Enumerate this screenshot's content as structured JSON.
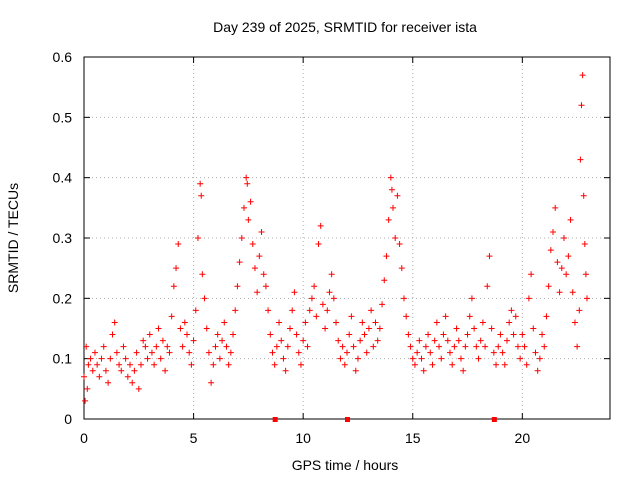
{
  "chart_data": {
    "type": "scatter",
    "title": "Day 239 of 2025, SRMTID for receiver ista",
    "xlabel": "GPS time / hours",
    "ylabel": "SRMTID / TECUs",
    "xlim": [
      0,
      24
    ],
    "ylim": [
      0,
      0.6
    ],
    "xticks": [
      0,
      5,
      10,
      15,
      20
    ],
    "yticks": [
      0,
      0.1,
      0.2,
      0.3,
      0.4,
      0.5,
      0.6
    ],
    "grid": true,
    "marker": "+",
    "color": "#ff0000",
    "baseline_markers_x": [
      8.7,
      12.0,
      18.7
    ],
    "series": [
      {
        "name": "SRMTID",
        "points": [
          [
            0.0,
            0.07
          ],
          [
            0.05,
            0.03
          ],
          [
            0.1,
            0.12
          ],
          [
            0.15,
            0.05
          ],
          [
            0.2,
            0.09
          ],
          [
            0.3,
            0.1
          ],
          [
            0.4,
            0.08
          ],
          [
            0.5,
            0.11
          ],
          [
            0.6,
            0.09
          ],
          [
            0.7,
            0.07
          ],
          [
            0.8,
            0.1
          ],
          [
            0.9,
            0.12
          ],
          [
            1.0,
            0.08
          ],
          [
            1.1,
            0.06
          ],
          [
            1.2,
            0.1
          ],
          [
            1.3,
            0.14
          ],
          [
            1.4,
            0.16
          ],
          [
            1.5,
            0.11
          ],
          [
            1.6,
            0.09
          ],
          [
            1.7,
            0.08
          ],
          [
            1.8,
            0.12
          ],
          [
            1.9,
            0.1
          ],
          [
            2.0,
            0.07
          ],
          [
            2.1,
            0.09
          ],
          [
            2.2,
            0.06
          ],
          [
            2.3,
            0.08
          ],
          [
            2.4,
            0.11
          ],
          [
            2.5,
            0.05
          ],
          [
            2.6,
            0.09
          ],
          [
            2.7,
            0.13
          ],
          [
            2.8,
            0.12
          ],
          [
            2.9,
            0.1
          ],
          [
            3.0,
            0.14
          ],
          [
            3.1,
            0.11
          ],
          [
            3.2,
            0.09
          ],
          [
            3.3,
            0.12
          ],
          [
            3.4,
            0.15
          ],
          [
            3.5,
            0.1
          ],
          [
            3.6,
            0.13
          ],
          [
            3.7,
            0.08
          ],
          [
            3.8,
            0.12
          ],
          [
            3.9,
            0.11
          ],
          [
            4.0,
            0.17
          ],
          [
            4.1,
            0.22
          ],
          [
            4.2,
            0.25
          ],
          [
            4.3,
            0.29
          ],
          [
            4.4,
            0.15
          ],
          [
            4.5,
            0.12
          ],
          [
            4.6,
            0.16
          ],
          [
            4.7,
            0.14
          ],
          [
            4.8,
            0.11
          ],
          [
            4.9,
            0.09
          ],
          [
            5.0,
            0.13
          ],
          [
            5.1,
            0.18
          ],
          [
            5.2,
            0.3
          ],
          [
            5.3,
            0.39
          ],
          [
            5.35,
            0.37
          ],
          [
            5.4,
            0.24
          ],
          [
            5.5,
            0.2
          ],
          [
            5.6,
            0.15
          ],
          [
            5.7,
            0.11
          ],
          [
            5.8,
            0.06
          ],
          [
            5.9,
            0.09
          ],
          [
            6.0,
            0.12
          ],
          [
            6.1,
            0.14
          ],
          [
            6.2,
            0.1
          ],
          [
            6.3,
            0.13
          ],
          [
            6.4,
            0.16
          ],
          [
            6.5,
            0.12
          ],
          [
            6.6,
            0.09
          ],
          [
            6.7,
            0.11
          ],
          [
            6.8,
            0.14
          ],
          [
            6.9,
            0.18
          ],
          [
            7.0,
            0.22
          ],
          [
            7.1,
            0.26
          ],
          [
            7.2,
            0.3
          ],
          [
            7.3,
            0.35
          ],
          [
            7.4,
            0.4
          ],
          [
            7.45,
            0.39
          ],
          [
            7.5,
            0.33
          ],
          [
            7.6,
            0.36
          ],
          [
            7.7,
            0.29
          ],
          [
            7.8,
            0.25
          ],
          [
            7.9,
            0.21
          ],
          [
            8.0,
            0.27
          ],
          [
            8.1,
            0.31
          ],
          [
            8.2,
            0.24
          ],
          [
            8.3,
            0.22
          ],
          [
            8.4,
            0.18
          ],
          [
            8.5,
            0.14
          ],
          [
            8.6,
            0.11
          ],
          [
            8.7,
            0.09
          ],
          [
            8.8,
            0.12
          ],
          [
            8.9,
            0.16
          ],
          [
            9.0,
            0.13
          ],
          [
            9.1,
            0.1
          ],
          [
            9.2,
            0.08
          ],
          [
            9.3,
            0.12
          ],
          [
            9.4,
            0.15
          ],
          [
            9.5,
            0.18
          ],
          [
            9.6,
            0.21
          ],
          [
            9.7,
            0.14
          ],
          [
            9.8,
            0.11
          ],
          [
            9.9,
            0.09
          ],
          [
            10.0,
            0.13
          ],
          [
            10.1,
            0.16
          ],
          [
            10.2,
            0.12
          ],
          [
            10.3,
            0.18
          ],
          [
            10.4,
            0.2
          ],
          [
            10.5,
            0.22
          ],
          [
            10.6,
            0.17
          ],
          [
            10.7,
            0.29
          ],
          [
            10.8,
            0.32
          ],
          [
            10.9,
            0.19
          ],
          [
            11.0,
            0.15
          ],
          [
            11.1,
            0.18
          ],
          [
            11.2,
            0.21
          ],
          [
            11.3,
            0.24
          ],
          [
            11.4,
            0.2
          ],
          [
            11.5,
            0.16
          ],
          [
            11.6,
            0.13
          ],
          [
            11.7,
            0.1
          ],
          [
            11.8,
            0.12
          ],
          [
            11.9,
            0.09
          ],
          [
            12.0,
            0.11
          ],
          [
            12.1,
            0.14
          ],
          [
            12.2,
            0.17
          ],
          [
            12.3,
            0.12
          ],
          [
            12.4,
            0.08
          ],
          [
            12.5,
            0.1
          ],
          [
            12.6,
            0.13
          ],
          [
            12.7,
            0.16
          ],
          [
            12.8,
            0.14
          ],
          [
            12.9,
            0.11
          ],
          [
            13.0,
            0.15
          ],
          [
            13.1,
            0.18
          ],
          [
            13.2,
            0.12
          ],
          [
            13.3,
            0.16
          ],
          [
            13.4,
            0.13
          ],
          [
            13.5,
            0.15
          ],
          [
            13.6,
            0.19
          ],
          [
            13.7,
            0.23
          ],
          [
            13.8,
            0.27
          ],
          [
            13.9,
            0.33
          ],
          [
            14.0,
            0.4
          ],
          [
            14.05,
            0.38
          ],
          [
            14.1,
            0.35
          ],
          [
            14.2,
            0.3
          ],
          [
            14.3,
            0.37
          ],
          [
            14.4,
            0.29
          ],
          [
            14.5,
            0.25
          ],
          [
            14.6,
            0.2
          ],
          [
            14.7,
            0.17
          ],
          [
            14.8,
            0.14
          ],
          [
            14.9,
            0.12
          ],
          [
            15.0,
            0.1
          ],
          [
            15.1,
            0.09
          ],
          [
            15.2,
            0.11
          ],
          [
            15.3,
            0.13
          ],
          [
            15.4,
            0.1
          ],
          [
            15.5,
            0.08
          ],
          [
            15.6,
            0.12
          ],
          [
            15.7,
            0.14
          ],
          [
            15.8,
            0.11
          ],
          [
            15.9,
            0.09
          ],
          [
            16.0,
            0.13
          ],
          [
            16.1,
            0.16
          ],
          [
            16.2,
            0.12
          ],
          [
            16.3,
            0.1
          ],
          [
            16.4,
            0.14
          ],
          [
            16.5,
            0.17
          ],
          [
            16.6,
            0.13
          ],
          [
            16.7,
            0.11
          ],
          [
            16.8,
            0.09
          ],
          [
            16.9,
            0.12
          ],
          [
            17.0,
            0.15
          ],
          [
            17.1,
            0.13
          ],
          [
            17.2,
            0.1
          ],
          [
            17.3,
            0.08
          ],
          [
            17.4,
            0.12
          ],
          [
            17.5,
            0.14
          ],
          [
            17.6,
            0.17
          ],
          [
            17.7,
            0.2
          ],
          [
            17.8,
            0.15
          ],
          [
            17.9,
            0.12
          ],
          [
            18.0,
            0.1
          ],
          [
            18.1,
            0.13
          ],
          [
            18.2,
            0.16
          ],
          [
            18.3,
            0.12
          ],
          [
            18.4,
            0.22
          ],
          [
            18.5,
            0.27
          ],
          [
            18.6,
            0.15
          ],
          [
            18.7,
            0.11
          ],
          [
            18.8,
            0.09
          ],
          [
            18.9,
            0.12
          ],
          [
            19.0,
            0.14
          ],
          [
            19.1,
            0.11
          ],
          [
            19.2,
            0.09
          ],
          [
            19.3,
            0.13
          ],
          [
            19.4,
            0.16
          ],
          [
            19.5,
            0.18
          ],
          [
            19.6,
            0.14
          ],
          [
            19.7,
            0.17
          ],
          [
            19.8,
            0.12
          ],
          [
            19.9,
            0.1
          ],
          [
            20.0,
            0.14
          ],
          [
            20.1,
            0.12
          ],
          [
            20.2,
            0.09
          ],
          [
            20.3,
            0.2
          ],
          [
            20.4,
            0.24
          ],
          [
            20.5,
            0.15
          ],
          [
            20.6,
            0.11
          ],
          [
            20.7,
            0.08
          ],
          [
            20.8,
            0.1
          ],
          [
            20.9,
            0.14
          ],
          [
            21.0,
            0.12
          ],
          [
            21.1,
            0.17
          ],
          [
            21.2,
            0.22
          ],
          [
            21.3,
            0.28
          ],
          [
            21.4,
            0.31
          ],
          [
            21.5,
            0.35
          ],
          [
            21.6,
            0.26
          ],
          [
            21.7,
            0.21
          ],
          [
            21.8,
            0.25
          ],
          [
            21.9,
            0.3
          ],
          [
            22.0,
            0.24
          ],
          [
            22.1,
            0.27
          ],
          [
            22.2,
            0.33
          ],
          [
            22.3,
            0.21
          ],
          [
            22.4,
            0.16
          ],
          [
            22.5,
            0.12
          ],
          [
            22.6,
            0.18
          ],
          [
            22.65,
            0.43
          ],
          [
            22.7,
            0.52
          ],
          [
            22.75,
            0.57
          ],
          [
            22.8,
            0.37
          ],
          [
            22.85,
            0.29
          ],
          [
            22.9,
            0.24
          ],
          [
            22.95,
            0.2
          ]
        ]
      }
    ]
  }
}
